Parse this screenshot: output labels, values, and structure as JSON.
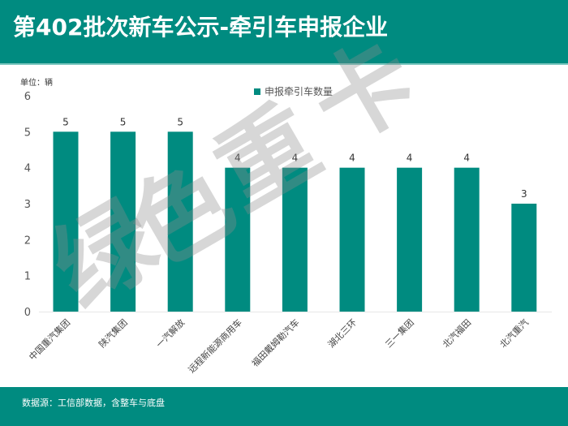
{
  "header": {
    "title": "第402批次新车公示-牵引车申报企业"
  },
  "unit_label": "单位：辆",
  "legend": {
    "label": "申报牵引车数量",
    "color": "#008b80"
  },
  "footer": {
    "note": "数据源：工信部数据，含整车与底盘"
  },
  "watermark": {
    "text": "绿色重卡"
  },
  "colors": {
    "bar": "#008b80",
    "header": "#008b80",
    "axis_text": "#555555"
  },
  "chart_data": {
    "type": "bar",
    "title": "第402批次新车公示-牵引车申报企业",
    "xlabel": "",
    "ylabel": "单位：辆",
    "ylim": [
      0,
      6
    ],
    "yticks": [
      0,
      1,
      2,
      3,
      4,
      5,
      6
    ],
    "grid": false,
    "legend_position": "top",
    "categories": [
      "中国重汽集团",
      "陕汽集团",
      "一汽解放",
      "远程新能源商用车",
      "福田戴姆勒汽车",
      "湖北三环",
      "三一集团",
      "北汽福田",
      "北汽重汽"
    ],
    "series": [
      {
        "name": "申报牵引车数量",
        "values": [
          5,
          5,
          5,
          4,
          4,
          4,
          4,
          4,
          3
        ]
      }
    ],
    "data_labels": true
  }
}
